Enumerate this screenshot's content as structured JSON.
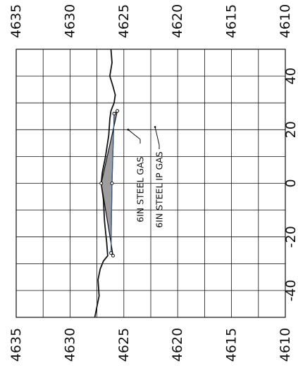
{
  "chart_data": {
    "type": "line",
    "title": "",
    "top_axis_ticks": [
      "4635",
      "4630",
      "4625",
      "4620",
      "4615",
      "4610"
    ],
    "bottom_axis_ticks": [
      "4635",
      "4630",
      "4625",
      "4620",
      "4615",
      "4610"
    ],
    "side_axis_ticks": [
      "40",
      "20",
      "0",
      "-20",
      "-40"
    ],
    "elevation_range": [
      4635,
      4610
    ],
    "offset_range": [
      50,
      -50
    ],
    "grid": true,
    "ground_profile": [
      {
        "offset": 50,
        "elevation": 4626.2
      },
      {
        "offset": 45,
        "elevation": 4626.1
      },
      {
        "offset": 40,
        "elevation": 4626.3
      },
      {
        "offset": 36,
        "elevation": 4626.0
      },
      {
        "offset": 33,
        "elevation": 4625.8
      },
      {
        "offset": 30,
        "elevation": 4625.9
      },
      {
        "offset": 27,
        "elevation": 4626.2
      },
      {
        "offset": 24,
        "elevation": 4626.3
      },
      {
        "offset": 18,
        "elevation": 4626.4
      },
      {
        "offset": 10,
        "elevation": 4626.7
      },
      {
        "offset": 4,
        "elevation": 4627.0
      },
      {
        "offset": 0,
        "elevation": 4627.1
      },
      {
        "offset": -6,
        "elevation": 4626.9
      },
      {
        "offset": -14,
        "elevation": 4626.8
      },
      {
        "offset": -22,
        "elevation": 4626.6
      },
      {
        "offset": -27,
        "elevation": 4626.5
      },
      {
        "offset": -29,
        "elevation": 4626.9
      },
      {
        "offset": -32,
        "elevation": 4627.2
      },
      {
        "offset": -36,
        "elevation": 4627.4
      },
      {
        "offset": -42,
        "elevation": 4627.3
      },
      {
        "offset": -50,
        "elevation": 4627.7
      }
    ],
    "proposed_section": [
      {
        "offset": 27,
        "elevation": 4625.6
      },
      {
        "offset": 0,
        "elevation": 4627.1
      },
      {
        "offset": -27,
        "elevation": 4626.0
      }
    ],
    "proposed_section_inner": [
      {
        "offset": 26,
        "elevation": 4625.9
      },
      {
        "offset": 0,
        "elevation": 4626.1
      },
      {
        "offset": -26,
        "elevation": 4626.2
      }
    ],
    "annotations": [
      {
        "text": "6IN STEEL GAS",
        "leader_offset": 20,
        "leader_elevation": 4624.6
      },
      {
        "text": "6IN STEEL IP GAS",
        "leader_offset": 21,
        "leader_elevation": 4622.1
      }
    ],
    "colors": {
      "line": "#111111",
      "fill": "#9e9e9e",
      "accent_line": "#2f5fb0"
    }
  }
}
